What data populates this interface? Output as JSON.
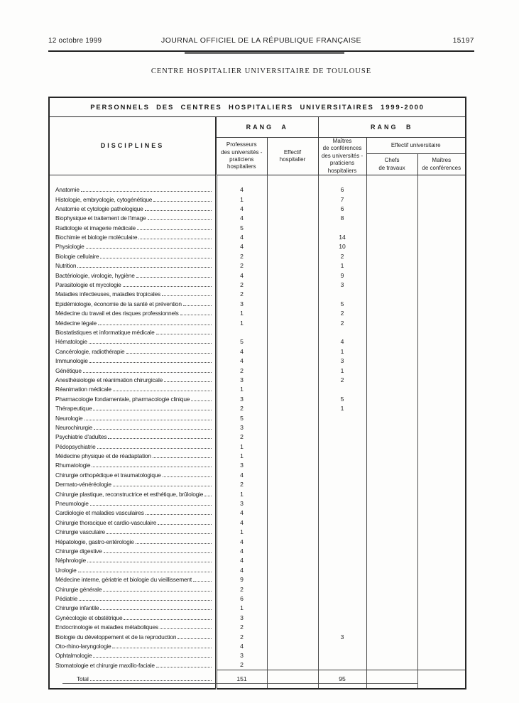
{
  "masthead": {
    "date": "12 octobre 1999",
    "journal": "JOURNAL OFFICIEL DE LA RÉPUBLIQUE FRANÇAISE",
    "page_number": "15197"
  },
  "document_title": "CENTRE HOSPITALIER UNIVERSITAIRE DE TOULOUSE",
  "table": {
    "title": "PERSONNELS DES CENTRES HOSPITALIERS UNIVERSITAIRES 1999-2000",
    "headers": {
      "disciplines": "DISCIPLINES",
      "rang_a": "RANG A",
      "rang_b": "RANG B",
      "professeurs": "Professeurs\ndes universités -\npraticiens\nhospitaliers",
      "effectif_hospitalier": "Effectif\nhospitalier",
      "maitres_conferences_uph": "Maîtres\nde conférences\ndes universités -\npraticiens\nhospitaliers",
      "effectif_universitaire": "Effectif universitaire",
      "chefs_de_travaux": "Chefs\nde travaux",
      "maitres_de_conferences": "Maîtres\nde conférences"
    },
    "row_columns": [
      "discipline",
      "professeurs_univ_praticiens_hosp",
      "effectif_hospitalier",
      "maitres_conf_univ_praticiens_hosp",
      "chefs_de_travaux",
      "maitres_de_conferences"
    ],
    "rows": [
      [
        "Anatomie",
        "4",
        "",
        "6",
        "",
        ""
      ],
      [
        "Histologie, embryologie, cytogénétique",
        "1",
        "",
        "7",
        "",
        ""
      ],
      [
        "Anatomie et cytologie pathologique",
        "4",
        "",
        "6",
        "",
        ""
      ],
      [
        "Biophysique et traitement de l'image",
        "4",
        "",
        "8",
        "",
        ""
      ],
      [
        "Radiologie et imagerie médicale",
        "5",
        "",
        "",
        "",
        ""
      ],
      [
        "Biochimie et biologie moléculaire",
        "4",
        "",
        "14",
        "",
        ""
      ],
      [
        "Physiologie",
        "4",
        "",
        "10",
        "",
        ""
      ],
      [
        "Biologie cellulaire",
        "2",
        "",
        "2",
        "",
        ""
      ],
      [
        "Nutrition",
        "2",
        "",
        "1",
        "",
        ""
      ],
      [
        "Bactériologie, virologie, hygiène",
        "4",
        "",
        "9",
        "",
        ""
      ],
      [
        "Parasitologie et mycologie",
        "2",
        "",
        "3",
        "",
        ""
      ],
      [
        "Maladies infectieuses, maladies tropicales",
        "2",
        "",
        "",
        "",
        ""
      ],
      [
        "Epidémiologie, économie de la santé et prévention",
        "3",
        "",
        "5",
        "",
        ""
      ],
      [
        "Médecine du travail et des risques professionnels",
        "1",
        "",
        "2",
        "",
        ""
      ],
      [
        "Médecine légale",
        "1",
        "",
        "2",
        "",
        ""
      ],
      [
        "Biostatistiques et informatique médicale",
        "",
        "",
        "",
        "",
        ""
      ],
      [
        "Hématologie",
        "5",
        "",
        "4",
        "",
        ""
      ],
      [
        "Cancérologie, radiothérapie",
        "4",
        "",
        "1",
        "",
        ""
      ],
      [
        "Immunologie",
        "4",
        "",
        "3",
        "",
        ""
      ],
      [
        "Génétique",
        "2",
        "",
        "1",
        "",
        ""
      ],
      [
        "Anesthésiologie et réanimation chirurgicale",
        "3",
        "",
        "2",
        "",
        ""
      ],
      [
        "Réanimation médicale",
        "1",
        "",
        "",
        "",
        ""
      ],
      [
        "Pharmacologie fondamentale, pharmacologie clinique",
        "3",
        "",
        "5",
        "",
        ""
      ],
      [
        "Thérapeutique",
        "2",
        "",
        "1",
        "",
        ""
      ],
      [
        "Neurologie",
        "5",
        "",
        "",
        "",
        ""
      ],
      [
        "Neurochirurgie",
        "3",
        "",
        "",
        "",
        ""
      ],
      [
        "Psychiatrie d'adultes",
        "2",
        "",
        "",
        "",
        ""
      ],
      [
        "Pédopsychiatrie",
        "1",
        "",
        "",
        "",
        ""
      ],
      [
        "Médecine physique et de réadaptation",
        "1",
        "",
        "",
        "",
        ""
      ],
      [
        "Rhumatologie",
        "3",
        "",
        "",
        "",
        ""
      ],
      [
        "Chirurgie orthopédique et traumatologique",
        "4",
        "",
        "",
        "",
        ""
      ],
      [
        "Dermato-vénéréologie",
        "2",
        "",
        "",
        "",
        ""
      ],
      [
        "Chirurgie plastique, reconstructrice et esthétique, brûlologie",
        "1",
        "",
        "",
        "",
        ""
      ],
      [
        "Pneumologie",
        "3",
        "",
        "",
        "",
        ""
      ],
      [
        "Cardiologie et maladies vasculaires",
        "4",
        "",
        "",
        "",
        ""
      ],
      [
        "Chirurgie thoracique et cardio-vasculaire",
        "4",
        "",
        "",
        "",
        ""
      ],
      [
        "Chirurgie vasculaire",
        "1",
        "",
        "",
        "",
        ""
      ],
      [
        "Hépatologie, gastro-entérologie",
        "4",
        "",
        "",
        "",
        ""
      ],
      [
        "Chirurgie digestive",
        "4",
        "",
        "",
        "",
        ""
      ],
      [
        "Néphrologie",
        "4",
        "",
        "",
        "",
        ""
      ],
      [
        "Urologie",
        "4",
        "",
        "",
        "",
        ""
      ],
      [
        "Médecine interne, gériatrie et biologie du vieillissement",
        "9",
        "",
        "",
        "",
        ""
      ],
      [
        "Chirurgie générale",
        "2",
        "",
        "",
        "",
        ""
      ],
      [
        "Pédiatrie",
        "6",
        "",
        "",
        "",
        ""
      ],
      [
        "Chirurgie infantile",
        "1",
        "",
        "",
        "",
        ""
      ],
      [
        "Gynécologie et obstétrique",
        "3",
        "",
        "",
        "",
        ""
      ],
      [
        "Endocrinologie et maladies métaboliques",
        "2",
        "",
        "",
        "",
        ""
      ],
      [
        "Biologie du développement et de la reproduction",
        "2",
        "",
        "3",
        "",
        ""
      ],
      [
        "Oto-rhino-laryngologie",
        "4",
        "",
        "",
        "",
        ""
      ],
      [
        "Ophtalmologie",
        "3",
        "",
        "",
        "",
        ""
      ],
      [
        "Stomatologie et chirurgie maxillo-faciale",
        "2",
        "",
        "",
        "",
        ""
      ]
    ],
    "total": {
      "label": "Total",
      "professeurs": "151",
      "effectif_hospitalier": "",
      "maitres_conferences_uph": "95",
      "chefs_de_travaux": "",
      "maitres_de_conferences": ""
    }
  },
  "colors": {
    "paper": "#fdfdfc",
    "ink": "#1d1d1d",
    "border": "#262626"
  }
}
